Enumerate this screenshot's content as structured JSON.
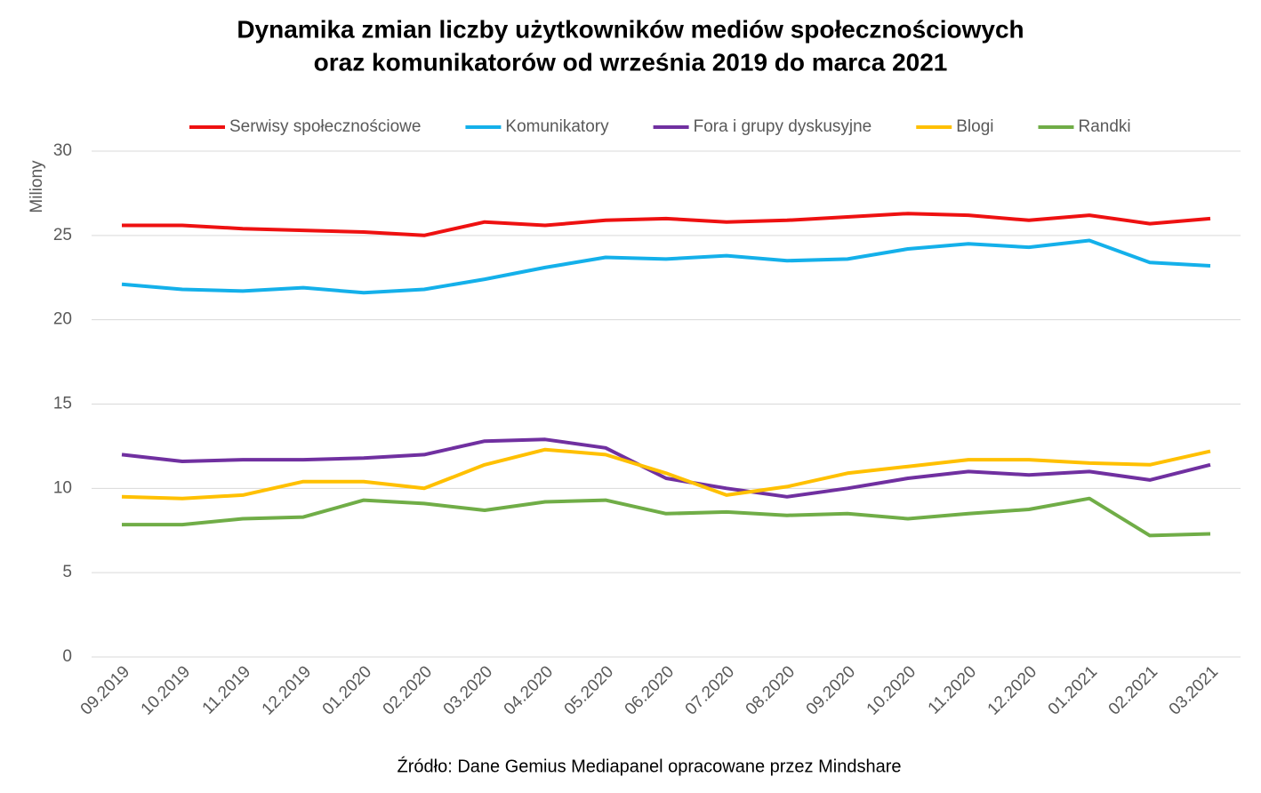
{
  "chart_data": {
    "type": "line",
    "title": "Dynamika zmian liczby użytkowników mediów społecznościowych",
    "title_line2": "oraz komunikatorów od września 2019 do marca 2021",
    "y_label": "Miliony",
    "source": "Źródło: Dane Gemius Mediapanel opracowane przez Mindshare",
    "categories": [
      "09.2019",
      "10.2019",
      "11.2019",
      "12.2019",
      "01.2020",
      "02.2020",
      "03.2020",
      "04.2020",
      "05.2020",
      "06.2020",
      "07.2020",
      "08.2020",
      "09.2020",
      "10.2020",
      "11.2020",
      "12.2020",
      "01.2021",
      "02.2021",
      "03.2021"
    ],
    "series": [
      {
        "name": "Serwisy społecznościowe",
        "color": "#ee1111",
        "values": [
          25.6,
          25.6,
          25.4,
          25.3,
          25.2,
          25.0,
          25.8,
          25.6,
          25.9,
          26.0,
          25.8,
          25.9,
          26.1,
          26.3,
          26.2,
          25.9,
          26.2,
          25.7,
          26.0
        ]
      },
      {
        "name": "Komunikatory",
        "color": "#14b0ea",
        "values": [
          22.1,
          21.8,
          21.7,
          21.9,
          21.6,
          21.8,
          22.4,
          23.1,
          23.7,
          23.6,
          23.8,
          23.5,
          23.6,
          24.2,
          24.5,
          24.3,
          24.7,
          23.4,
          23.2
        ]
      },
      {
        "name": "Fora i grupy dyskusyjne",
        "color": "#7030a0",
        "values": [
          12.0,
          11.6,
          11.7,
          11.7,
          11.8,
          12.0,
          12.8,
          12.9,
          12.4,
          10.6,
          10.0,
          9.5,
          10.0,
          10.6,
          11.0,
          10.8,
          11.0,
          10.5,
          11.4
        ]
      },
      {
        "name": "Blogi",
        "color": "#ffc000",
        "values": [
          9.5,
          9.4,
          9.6,
          10.4,
          10.4,
          10.0,
          11.4,
          12.3,
          12.0,
          10.9,
          9.6,
          10.1,
          10.9,
          11.3,
          11.7,
          11.7,
          11.5,
          11.4,
          12.2
        ]
      },
      {
        "name": "Randki",
        "color": "#70ad47",
        "values": [
          7.85,
          7.85,
          8.2,
          8.3,
          9.3,
          9.1,
          8.7,
          9.2,
          9.3,
          8.5,
          8.6,
          8.4,
          8.5,
          8.2,
          8.5,
          8.75,
          9.4,
          7.2,
          7.3
        ]
      }
    ],
    "ylim": [
      0,
      30
    ],
    "yticks": [
      0,
      5,
      10,
      15,
      20,
      25,
      30
    ],
    "grid": true,
    "legend": "top"
  }
}
